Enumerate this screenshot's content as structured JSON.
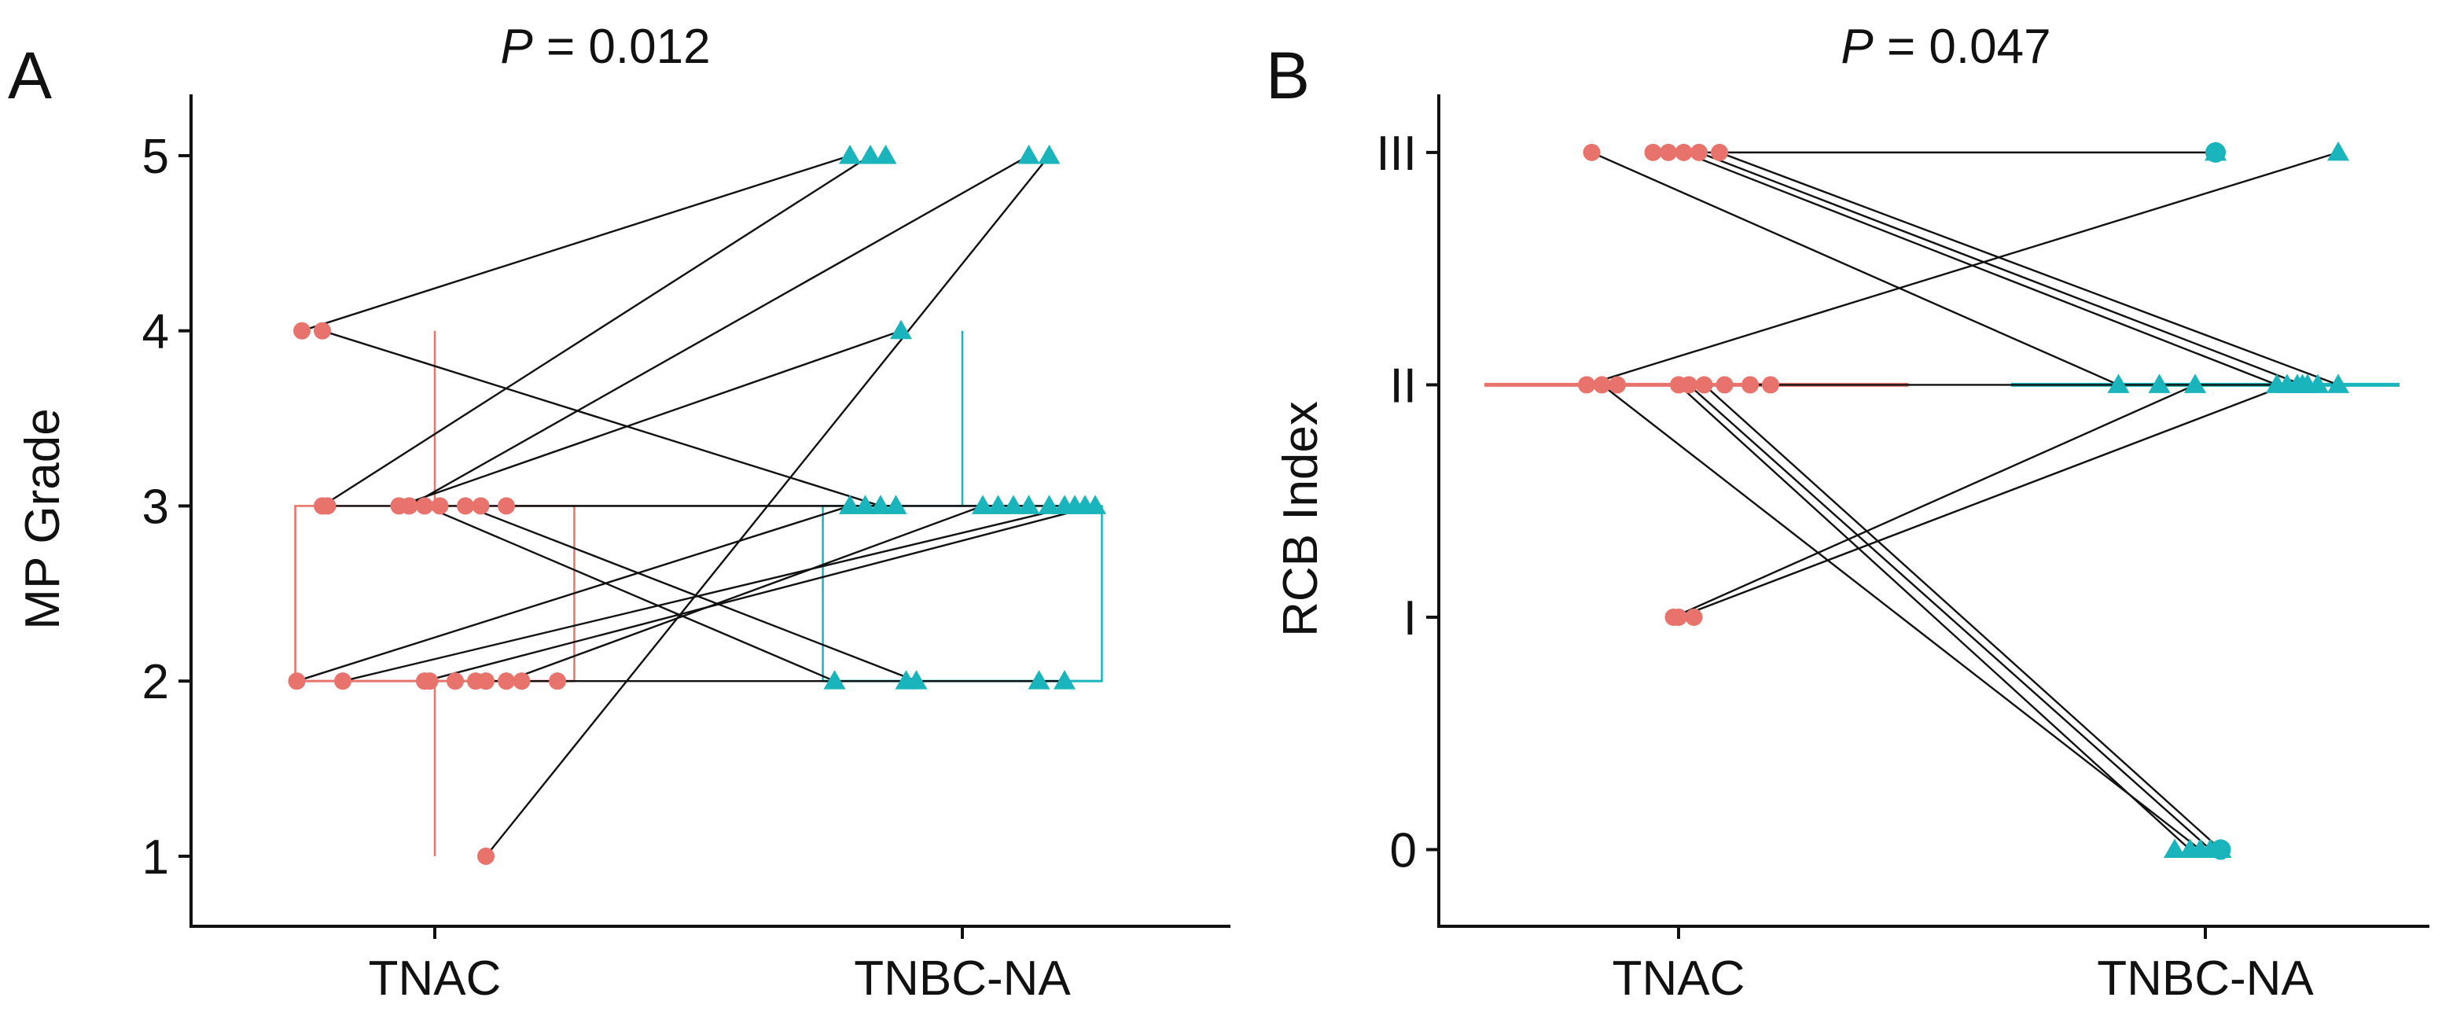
{
  "colors": {
    "tnac": "#E8736C",
    "tnbc": "#1AB5BC",
    "line": "#111111"
  },
  "chart_data": [
    {
      "type": "scatter",
      "panel_label": "A",
      "title": {
        "prefix": "P",
        "value": " = 0.012"
      },
      "xlabel": "",
      "ylabel": "MP Grade",
      "categories": [
        "TNAC",
        "TNBC-NA"
      ],
      "y_ticks": [
        {
          "value": 1,
          "label": "1"
        },
        {
          "value": 2,
          "label": "2"
        },
        {
          "value": 3,
          "label": "3"
        },
        {
          "value": 4,
          "label": "4"
        },
        {
          "value": 5,
          "label": "5"
        }
      ],
      "ylim": [
        0.6,
        5.35
      ],
      "box_style": "box",
      "boxes": [
        {
          "group": "TNAC",
          "min": 1,
          "q1": 2,
          "median": 2,
          "q3": 3,
          "max": 4
        },
        {
          "group": "TNBC-NA",
          "min": 2,
          "q1": 2,
          "median": 2,
          "q3": 3,
          "max": 4
        }
      ],
      "pairs": [
        {
          "tnac": {
            "y": 4,
            "dx": -0.26
          },
          "tnbc": {
            "y": 5,
            "dx": -0.22
          }
        },
        {
          "tnac": {
            "y": 4,
            "dx": -0.22
          },
          "tnbc": {
            "y": 3,
            "dx": -0.16
          }
        },
        {
          "tnac": {
            "y": 3,
            "dx": -0.22
          },
          "tnbc": {
            "y": 5,
            "dx": -0.18
          }
        },
        {
          "tnac": {
            "y": 3,
            "dx": -0.21
          },
          "tnbc": {
            "y": 3,
            "dx": 0.13
          }
        },
        {
          "tnac": {
            "y": 3,
            "dx": -0.07
          },
          "tnbc": {
            "y": 4,
            "dx": -0.12
          }
        },
        {
          "tnac": {
            "y": 3,
            "dx": -0.05
          },
          "tnbc": {
            "y": 5,
            "dx": 0.13
          }
        },
        {
          "tnac": {
            "y": 3,
            "dx": -0.02
          },
          "tnbc": {
            "y": 2,
            "dx": -0.25
          }
        },
        {
          "tnac": {
            "y": 3,
            "dx": 0.06
          },
          "tnbc": {
            "y": 2,
            "dx": -0.09
          }
        },
        {
          "tnac": {
            "y": 3,
            "dx": 0.14
          },
          "tnbc": {
            "y": 3,
            "dx": 0.24
          }
        },
        {
          "tnac": {
            "y": 2,
            "dx": -0.27
          },
          "tnbc": {
            "y": 3,
            "dx": -0.22
          }
        },
        {
          "tnac": {
            "y": 2,
            "dx": -0.18
          },
          "tnbc": {
            "y": 3,
            "dx": 0.22
          }
        },
        {
          "tnac": {
            "y": 2,
            "dx": -0.02
          },
          "tnbc": {
            "y": 3,
            "dx": 0.26
          }
        },
        {
          "tnac": {
            "y": 2,
            "dx": 0.1
          },
          "tnbc": {
            "y": 2,
            "dx": 0.2
          }
        },
        {
          "tnac": {
            "y": 2,
            "dx": 0.14
          },
          "tnbc": {
            "y": 3,
            "dx": 0.04
          }
        },
        {
          "tnac": {
            "y": 1,
            "dx": 0.1
          },
          "tnbc": {
            "y": 5,
            "dx": 0.17
          }
        }
      ],
      "extra_tnac": [
        {
          "y": 3,
          "dx": 0.01
        },
        {
          "y": 3,
          "dx": 0.09
        },
        {
          "y": 2,
          "dx": -0.01
        },
        {
          "y": 2,
          "dx": 0.04
        },
        {
          "y": 2,
          "dx": 0.08
        },
        {
          "y": 2,
          "dx": 0.17
        },
        {
          "y": 2,
          "dx": 0.24
        }
      ],
      "extra_tnbc": [
        {
          "y": 5,
          "dx": -0.15
        },
        {
          "y": 3,
          "dx": -0.19
        },
        {
          "y": 3,
          "dx": -0.13
        },
        {
          "y": 3,
          "dx": 0.07
        },
        {
          "y": 3,
          "dx": 0.1
        },
        {
          "y": 3,
          "dx": 0.17
        },
        {
          "y": 3,
          "dx": 0.2
        },
        {
          "y": 2,
          "dx": -0.11
        },
        {
          "y": 2,
          "dx": 0.15
        }
      ],
      "tnbc_circles": []
    },
    {
      "type": "scatter",
      "panel_label": "B",
      "title": {
        "prefix": "P",
        "value": " = 0.047"
      },
      "xlabel": "",
      "ylabel": "RCB Index",
      "categories": [
        "TNAC",
        "TNBC-NA"
      ],
      "y_ticks": [
        {
          "value": 0,
          "label": "0"
        },
        {
          "value": 1,
          "label": "I"
        },
        {
          "value": 2,
          "label": "II"
        },
        {
          "value": 3,
          "label": "III"
        }
      ],
      "ylim": [
        -0.33,
        3.25
      ],
      "box_style": "flat",
      "boxes": [
        {
          "group": "TNAC",
          "min": 2,
          "q1": 2,
          "median": 2,
          "q3": 2,
          "max": 2,
          "line_from_dx": -0.38,
          "line_to_dx": 0.45
        },
        {
          "group": "TNBC-NA",
          "min": 2,
          "q1": 2,
          "median": 2,
          "q3": 2,
          "max": 2,
          "line_from_dx": -0.38,
          "line_to_dx": 0.38
        }
      ],
      "pairs": [
        {
          "tnac": {
            "y": 3,
            "dx": -0.17
          },
          "tnbc": {
            "y": 2,
            "dx": -0.17
          }
        },
        {
          "tnac": {
            "y": 3,
            "dx": -0.02
          },
          "tnbc": {
            "y": 3,
            "dx": 0.02
          }
        },
        {
          "tnac": {
            "y": 3,
            "dx": 0.01
          },
          "tnbc": {
            "y": 2,
            "dx": 0.14
          }
        },
        {
          "tnac": {
            "y": 3,
            "dx": 0.04
          },
          "tnbc": {
            "y": 2,
            "dx": 0.19
          }
        },
        {
          "tnac": {
            "y": 3,
            "dx": 0.08
          },
          "tnbc": {
            "y": 2,
            "dx": 0.26
          }
        },
        {
          "tnac": {
            "y": 2,
            "dx": -0.18
          },
          "tnbc": {
            "y": 3,
            "dx": 0.26
          }
        },
        {
          "tnac": {
            "y": 2,
            "dx": -0.15
          },
          "tnbc": {
            "y": 0,
            "dx": -0.01
          }
        },
        {
          "tnac": {
            "y": 2,
            "dx": 0.0
          },
          "tnbc": {
            "y": 0,
            "dx": -0.03
          }
        },
        {
          "tnac": {
            "y": 2,
            "dx": 0.02
          },
          "tnbc": {
            "y": 0,
            "dx": 0.01
          }
        },
        {
          "tnac": {
            "y": 2,
            "dx": 0.05
          },
          "tnbc": {
            "y": 0,
            "dx": 0.03
          }
        },
        {
          "tnac": {
            "y": 2,
            "dx": 0.14
          },
          "tnbc": {
            "y": 2,
            "dx": 0.22
          }
        },
        {
          "tnac": {
            "y": 1,
            "dx": -0.01
          },
          "tnbc": {
            "y": 2,
            "dx": -0.02
          }
        },
        {
          "tnac": {
            "y": 1,
            "dx": 0.0
          },
          "tnbc": {
            "y": 2,
            "dx": 0.16
          }
        }
      ],
      "extra_tnac": [
        {
          "y": 2,
          "dx": -0.12
        },
        {
          "y": 2,
          "dx": 0.09
        },
        {
          "y": 2,
          "dx": 0.18
        },
        {
          "y": 3,
          "dx": -0.05
        },
        {
          "y": 1,
          "dx": 0.03
        }
      ],
      "extra_tnbc": [
        {
          "y": 2,
          "dx": -0.09
        },
        {
          "y": 2,
          "dx": 0.18
        },
        {
          "y": 2,
          "dx": 0.2
        },
        {
          "y": 0,
          "dx": -0.06
        }
      ],
      "tnbc_circles": [
        {
          "y": 3,
          "dx": 0.02
        },
        {
          "y": 0,
          "dx": 0.03
        }
      ]
    }
  ]
}
